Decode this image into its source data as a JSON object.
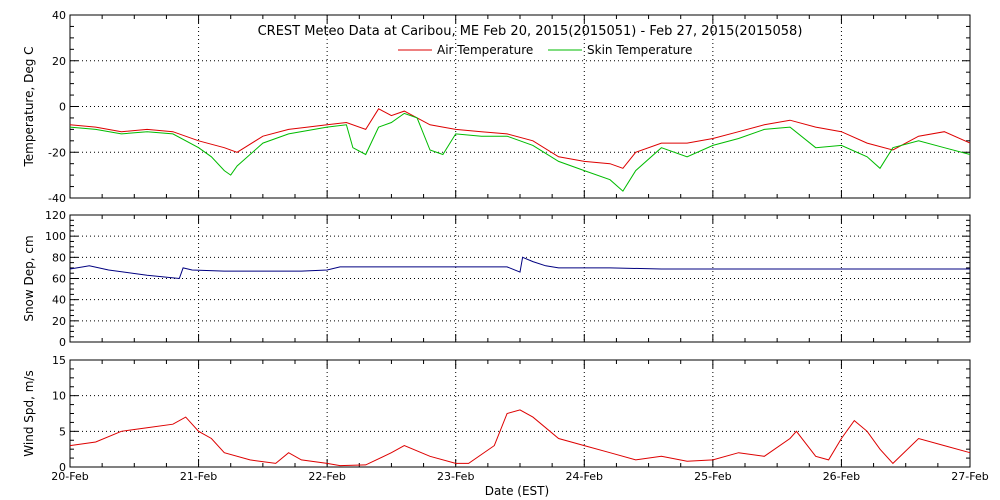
{
  "chart_data": {
    "type": "line",
    "title": "CREST Meteo Data at Caribou, ME    Feb 20, 2015(2015051) - Feb 27, 2015(2015058)",
    "xlabel": "Date (EST)",
    "x_tick_labels": [
      "20-Feb",
      "21-Feb",
      "22-Feb",
      "23-Feb",
      "24-Feb",
      "25-Feb",
      "26-Feb",
      "27-Feb"
    ],
    "xlim": [
      0,
      7
    ],
    "grid": "dotted",
    "legend_placement": "top-center",
    "panels": [
      {
        "ylabel": "Temperature, Deg C",
        "ylim": [
          -40,
          40
        ],
        "y_ticks": [
          "-40",
          "-20",
          "0",
          "20",
          "40"
        ],
        "series": [
          {
            "name": "Air Temperature",
            "color": "#dd0000",
            "x": [
              0,
              0.2,
              0.4,
              0.6,
              0.8,
              1.0,
              1.2,
              1.3,
              1.5,
              1.7,
              2.0,
              2.15,
              2.3,
              2.4,
              2.5,
              2.6,
              2.8,
              3.0,
              3.2,
              3.4,
              3.6,
              3.8,
              4.0,
              4.2,
              4.3,
              4.4,
              4.6,
              4.8,
              5.0,
              5.2,
              5.4,
              5.6,
              5.8,
              6.0,
              6.2,
              6.4,
              6.6,
              6.8,
              7.0
            ],
            "values": [
              -8,
              -9,
              -11,
              -10,
              -11,
              -15,
              -18,
              -20,
              -13,
              -10,
              -8,
              -7,
              -10,
              -1,
              -4,
              -2,
              -8,
              -10,
              -11,
              -12,
              -15,
              -22,
              -24,
              -25,
              -27,
              -20,
              -16,
              -16,
              -14,
              -11,
              -8,
              -6,
              -9,
              -11,
              -16,
              -19,
              -13,
              -11,
              -16
            ]
          },
          {
            "name": "Skin Temperature",
            "color": "#00bb00",
            "x": [
              0,
              0.2,
              0.4,
              0.6,
              0.8,
              1.0,
              1.1,
              1.2,
              1.25,
              1.3,
              1.5,
              1.7,
              2.0,
              2.15,
              2.2,
              2.3,
              2.4,
              2.5,
              2.6,
              2.7,
              2.8,
              2.9,
              3.0,
              3.2,
              3.4,
              3.6,
              3.8,
              4.0,
              4.2,
              4.3,
              4.4,
              4.6,
              4.8,
              5.0,
              5.2,
              5.4,
              5.6,
              5.8,
              6.0,
              6.2,
              6.3,
              6.4,
              6.6,
              6.8,
              7.0
            ],
            "values": [
              -9,
              -10,
              -12,
              -11,
              -12,
              -18,
              -22,
              -28,
              -30,
              -26,
              -16,
              -12,
              -9,
              -8,
              -18,
              -21,
              -9,
              -7,
              -3,
              -5,
              -19,
              -21,
              -12,
              -13,
              -13,
              -17,
              -24,
              -28,
              -32,
              -37,
              -28,
              -18,
              -22,
              -17,
              -14,
              -10,
              -9,
              -18,
              -17,
              -22,
              -27,
              -18,
              -15,
              -18,
              -21
            ]
          }
        ]
      },
      {
        "ylabel": "Snow Dep, cm",
        "ylim": [
          0,
          120
        ],
        "y_ticks": [
          "0",
          "20",
          "40",
          "60",
          "80",
          "100",
          "120"
        ],
        "series": [
          {
            "name": "",
            "color": "#000080",
            "x": [
              0,
              0.1,
              0.15,
              0.3,
              0.6,
              0.85,
              0.88,
              0.95,
              1.2,
              1.5,
              1.8,
              2.0,
              2.1,
              2.3,
              2.6,
              2.9,
              3.2,
              3.4,
              3.5,
              3.52,
              3.6,
              3.7,
              3.8,
              4.2,
              4.6,
              5.0,
              5.5,
              6.0,
              6.5,
              7.0
            ],
            "values": [
              69,
              71,
              72,
              68,
              63,
              60,
              70,
              68,
              67,
              67,
              67,
              68,
              71,
              71,
              71,
              71,
              71,
              71,
              66,
              80,
              76,
              72,
              70,
              70,
              69,
              69,
              69,
              69,
              69,
              69
            ]
          }
        ]
      },
      {
        "ylabel": "Wind Spd, m/s",
        "ylim": [
          0,
          15
        ],
        "y_ticks": [
          "0",
          "5",
          "10",
          "15"
        ],
        "series": [
          {
            "name": "",
            "color": "#dd0000",
            "x": [
              0,
              0.2,
              0.4,
              0.6,
              0.8,
              0.9,
              1.0,
              1.1,
              1.2,
              1.4,
              1.6,
              1.7,
              1.8,
              2.0,
              2.1,
              2.3,
              2.5,
              2.6,
              2.8,
              3.0,
              3.1,
              3.3,
              3.4,
              3.5,
              3.6,
              3.8,
              4.0,
              4.2,
              4.4,
              4.6,
              4.8,
              5.0,
              5.2,
              5.4,
              5.6,
              5.65,
              5.8,
              5.9,
              6.0,
              6.1,
              6.2,
              6.3,
              6.4,
              6.6,
              6.8,
              7.0
            ],
            "values": [
              3,
              3.5,
              5,
              5.5,
              6,
              7,
              5,
              4,
              2,
              1,
              0.5,
              2,
              1,
              0.5,
              0.2,
              0.3,
              2,
              3,
              1.5,
              0.5,
              0.5,
              3,
              7.5,
              8,
              7,
              4,
              3,
              2,
              1,
              1.5,
              0.8,
              1,
              2,
              1.5,
              4,
              5,
              1.5,
              1,
              4,
              6.5,
              5,
              2.5,
              0.5,
              4,
              3,
              2
            ]
          }
        ]
      }
    ]
  }
}
